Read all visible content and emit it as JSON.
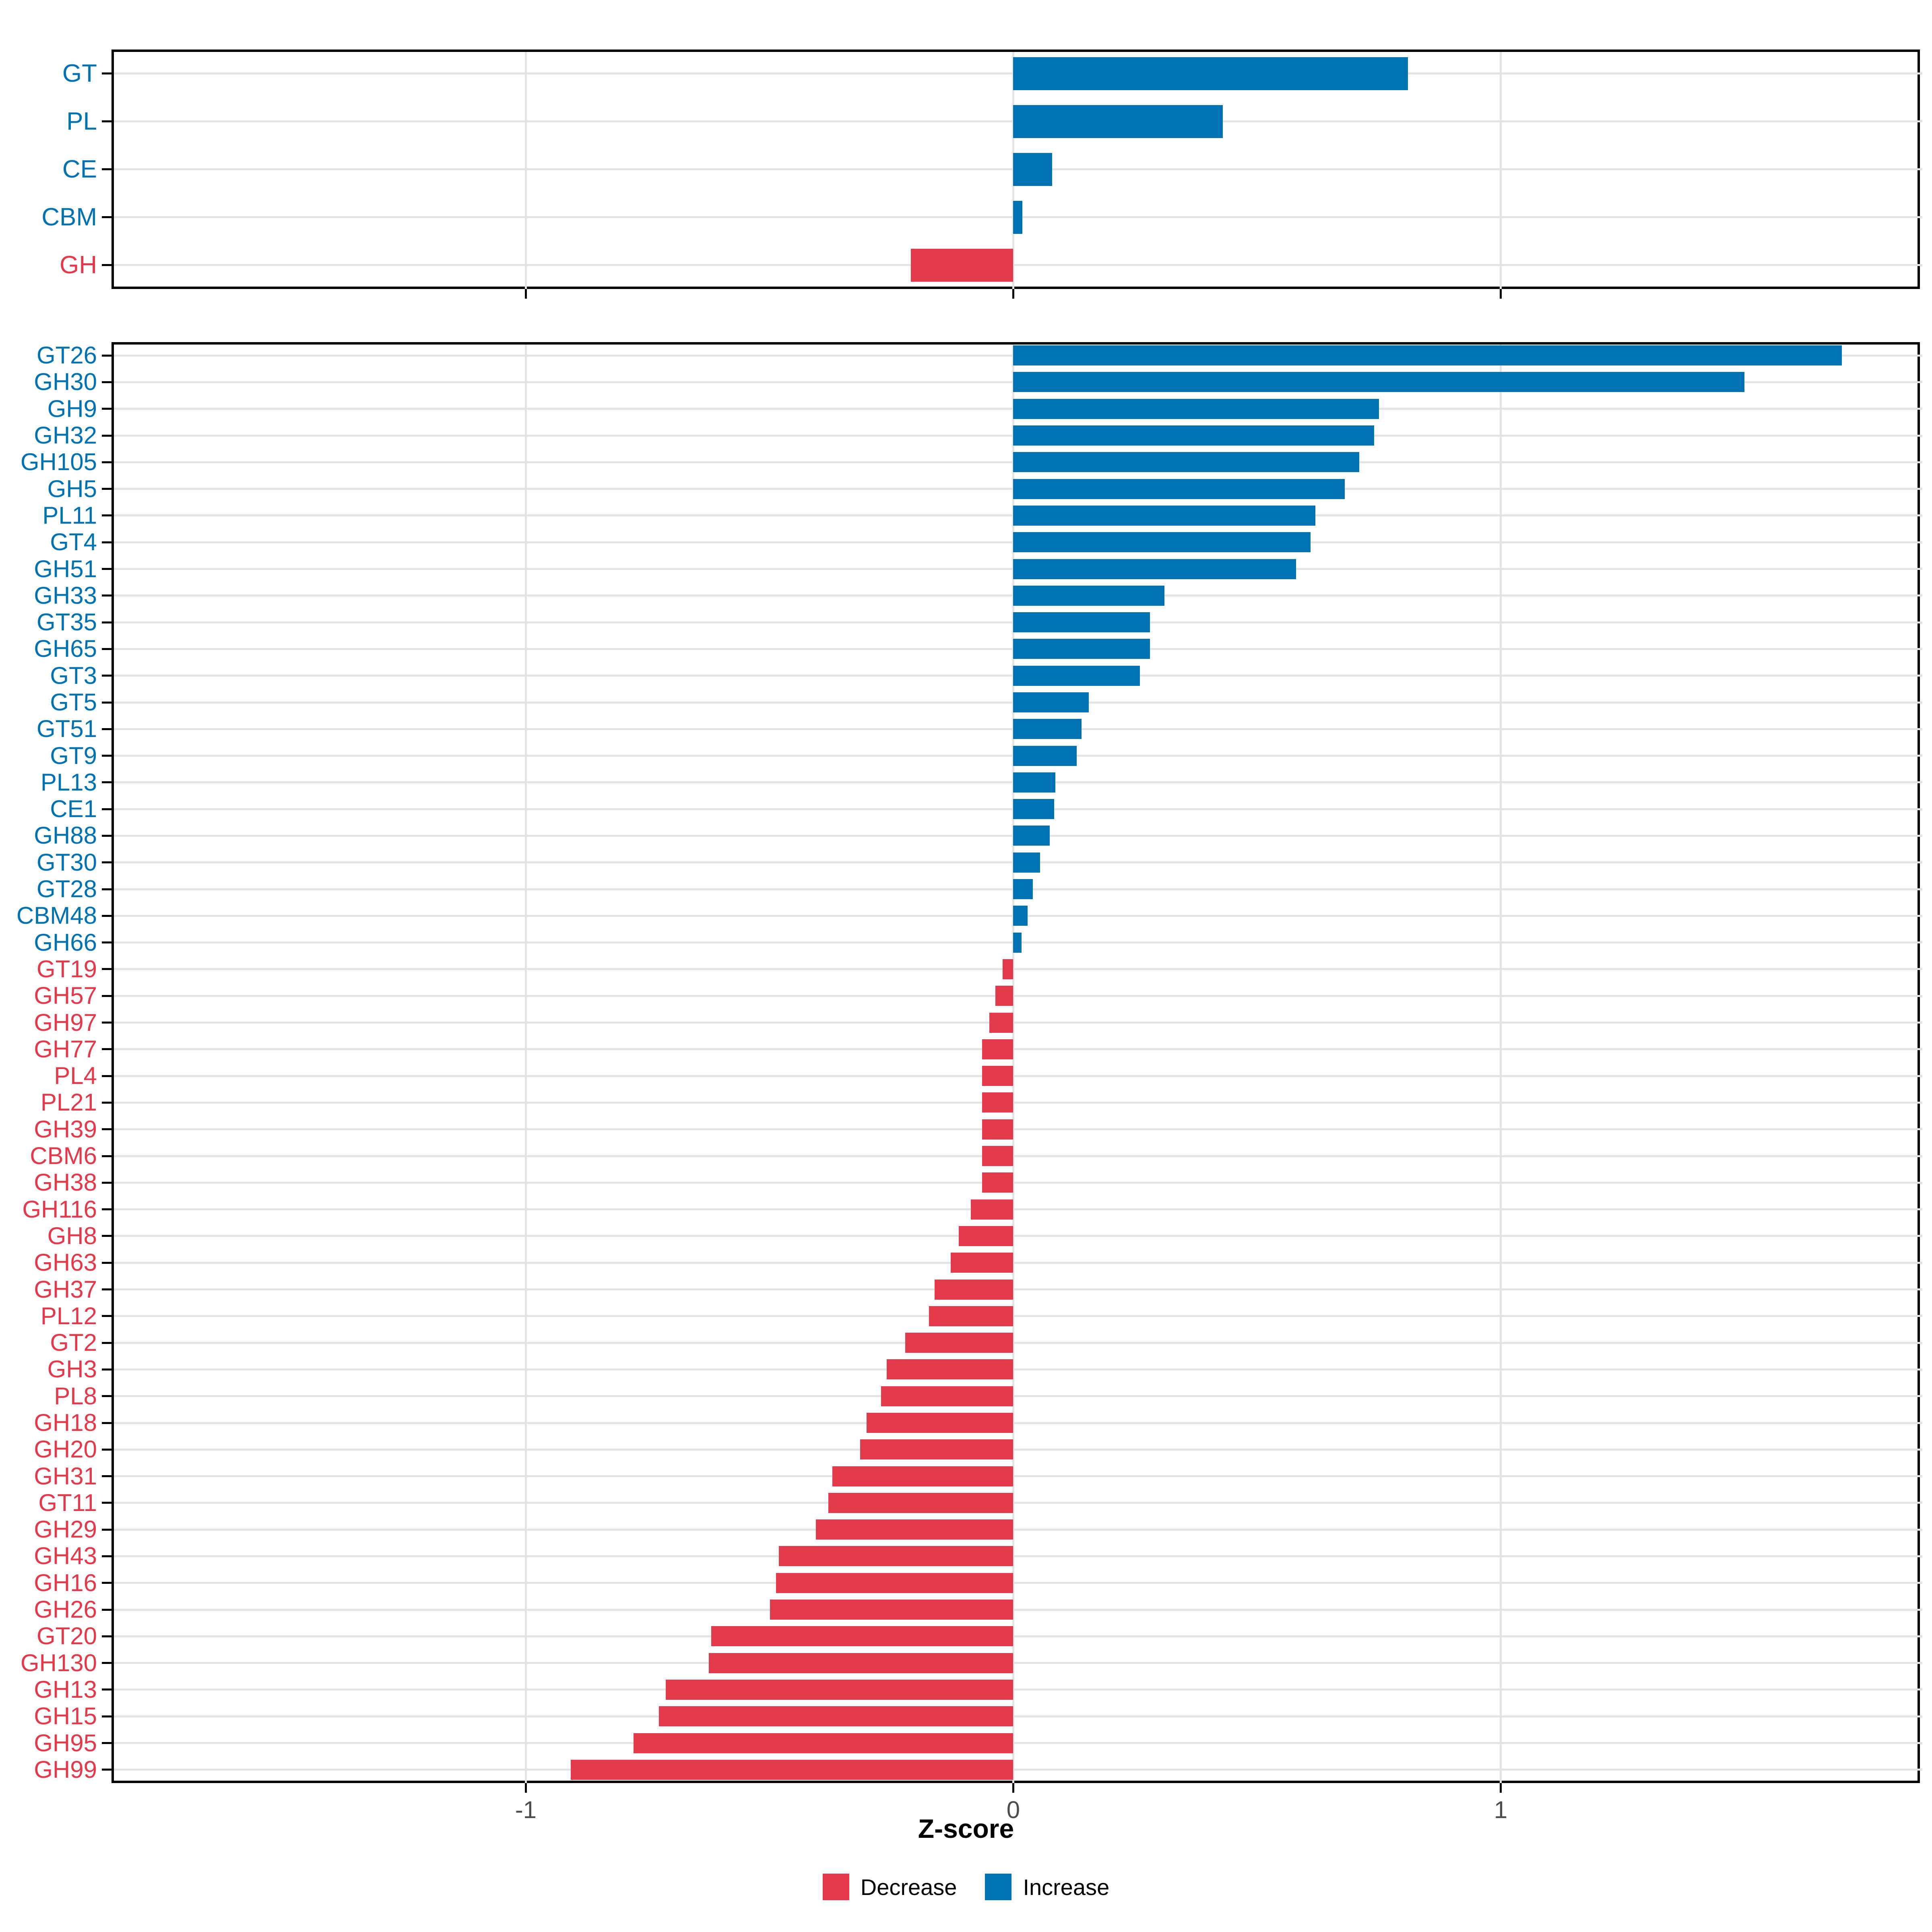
{
  "axis": {
    "xlabel": "Z-score",
    "tick_values": [
      -1,
      0,
      1
    ],
    "tick_labels": [
      "-1",
      "0",
      "1"
    ],
    "xlim": [
      -1.85,
      1.86
    ],
    "grid": true,
    "tick_text_color": "#4d4d4d"
  },
  "colors": {
    "increase": "#0072B2",
    "decrease": "#E4394B",
    "grid": "#E3E3E3",
    "border": "#000000",
    "tick": "#000000",
    "background": "#FFFFFF"
  },
  "legend": {
    "items": [
      {
        "label": "Decrease",
        "color": "#E4394B"
      },
      {
        "label": "Increase",
        "color": "#0072B2"
      }
    ]
  },
  "chart_data": [
    {
      "type": "bar",
      "orientation": "horizontal",
      "panel": "top",
      "title": "",
      "xlabel": "Z-score",
      "xlim": [
        -1.85,
        1.86
      ],
      "legend_position": "bottom",
      "categories": [
        "GT",
        "PL",
        "CE",
        "CBM",
        "GH"
      ],
      "values": [
        0.81,
        0.43,
        0.08,
        0.019,
        -0.21
      ]
    },
    {
      "type": "bar",
      "orientation": "horizontal",
      "panel": "bottom",
      "title": "",
      "xlabel": "Z-score",
      "xlim": [
        -1.85,
        1.86
      ],
      "legend_position": "bottom",
      "categories": [
        "GT26",
        "GH30",
        "GH9",
        "GH32",
        "GH105",
        "GH5",
        "PL11",
        "GT4",
        "GH51",
        "GH33",
        "GT35",
        "GH65",
        "GT3",
        "GT5",
        "GT51",
        "GT9",
        "PL13",
        "CE1",
        "GH88",
        "GT30",
        "GT28",
        "CBM48",
        "GH66",
        "GT19",
        "GH57",
        "GH97",
        "GH77",
        "PL4",
        "PL21",
        "GH39",
        "CBM6",
        "GH38",
        "GH116",
        "GH8",
        "GH63",
        "GH37",
        "PL12",
        "GT2",
        "GH3",
        "PL8",
        "GH18",
        "GH20",
        "GH31",
        "GT11",
        "GH29",
        "GH43",
        "GH16",
        "GH26",
        "GT20",
        "GH130",
        "GH13",
        "GH15",
        "GH95",
        "GH99"
      ],
      "values": [
        1.7,
        1.5,
        0.75,
        0.74,
        0.71,
        0.68,
        0.62,
        0.61,
        0.58,
        0.31,
        0.28,
        0.28,
        0.26,
        0.155,
        0.14,
        0.13,
        0.086,
        0.084,
        0.075,
        0.055,
        0.04,
        0.029,
        0.017,
        -0.022,
        -0.037,
        -0.049,
        -0.064,
        -0.064,
        -0.064,
        -0.064,
        -0.064,
        -0.064,
        -0.087,
        -0.112,
        -0.128,
        -0.161,
        -0.173,
        -0.222,
        -0.26,
        -0.271,
        -0.301,
        -0.314,
        -0.371,
        -0.379,
        -0.405,
        -0.481,
        -0.487,
        -0.499,
        -0.62,
        -0.625,
        -0.713,
        -0.727,
        -0.779,
        -0.908
      ]
    }
  ]
}
